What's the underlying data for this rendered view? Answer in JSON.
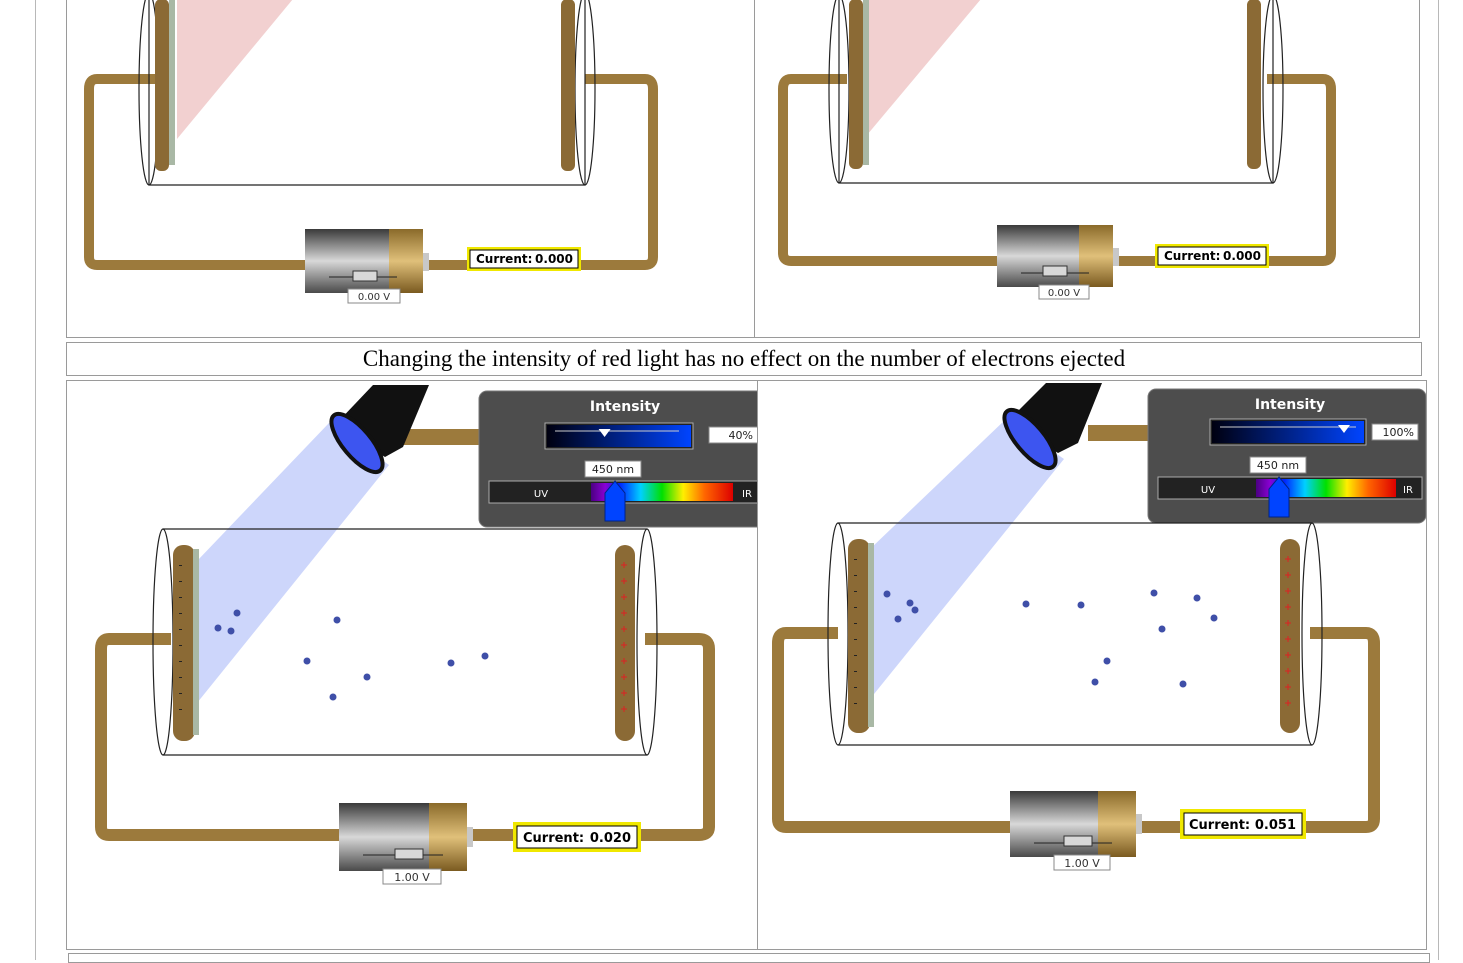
{
  "caption": "Changing the intensity of red light has no effect on the number of electrons ejected",
  "panels": [
    {
      "id": "top-left",
      "current_label": "Current:",
      "current_value": "0.000",
      "voltage": "0.00 V"
    },
    {
      "id": "top-right",
      "current_label": "Current:",
      "current_value": "0.000",
      "voltage": "0.00 V"
    },
    {
      "id": "bottom-left",
      "current_label": "Current:",
      "current_value": "0.020",
      "voltage": "1.00 V",
      "intensity_title": "Intensity",
      "intensity_value": "40%",
      "intensity_fraction": 0.4,
      "wavelength": "450 nm",
      "uv_label": "UV",
      "ir_label": "IR"
    },
    {
      "id": "bottom-right",
      "current_label": "Current:",
      "current_value": "0.051",
      "voltage": "1.00 V",
      "intensity_title": "Intensity",
      "intensity_value": "100%",
      "intensity_fraction": 1.0,
      "wavelength": "450 nm",
      "uv_label": "UV",
      "ir_label": "IR"
    }
  ],
  "colors": {
    "wire": "#9c7a3c",
    "red_beam": "#f2d0d0",
    "blue_beam": "#cdd6fb",
    "electron": "#3f4fa8",
    "current_box_border": "#f0e800",
    "plate": "#8b6a35"
  }
}
